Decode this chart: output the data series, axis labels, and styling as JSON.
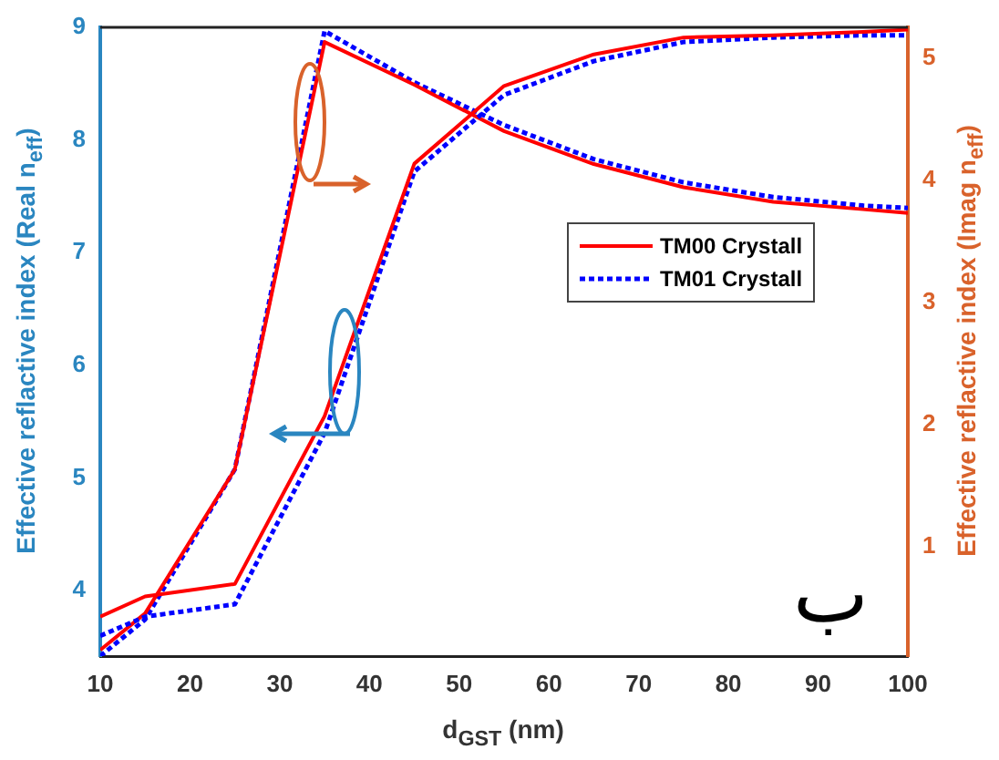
{
  "chart_data": {
    "type": "line",
    "xlabel": "d$_{GST}$ (nm)",
    "ylabel": "Effective reflactive index (Real n$_{eff}$)",
    "y2label": "Effective reflactive index (Imag n$_{eff}$)",
    "x": [
      10,
      15,
      25,
      35,
      45,
      55,
      65,
      75,
      85,
      95,
      100
    ],
    "series": [
      {
        "name": "TM00 Crystall",
        "color": "#ff0000",
        "line_style": "solid",
        "values": [
          3.77,
          3.95,
          4.06,
          5.55,
          7.79,
          8.48,
          8.76,
          8.91,
          8.93,
          8.96,
          8.98
        ]
      },
      {
        "name": "TM01 Crystall",
        "color": "#0000ff",
        "line_style": "dotted",
        "values": [
          3.6,
          3.77,
          3.88,
          5.4,
          7.72,
          8.4,
          8.7,
          8.87,
          8.91,
          8.93,
          8.93
        ]
      },
      {
        "color": "#ff0000",
        "line_style": "solid",
        "axis": "y2",
        "values": [
          0.15,
          0.45,
          1.63,
          5.13,
          4.78,
          4.4,
          4.13,
          3.94,
          3.82,
          3.76,
          3.73
        ]
      },
      {
        "color": "#0000ff",
        "line_style": "dotted",
        "axis": "y2",
        "values": [
          0.1,
          0.4,
          1.63,
          5.22,
          4.8,
          4.45,
          4.17,
          3.98,
          3.86,
          3.79,
          3.77
        ]
      }
    ],
    "xlim": [
      10,
      100
    ],
    "xticks": [
      10,
      20,
      30,
      40,
      50,
      60,
      70,
      80,
      90,
      100
    ],
    "ylim": [
      3.42,
      9
    ],
    "yticks": [
      4,
      5,
      6,
      7,
      8,
      9
    ],
    "y2lim": [
      0.1,
      5.25
    ],
    "y2ticks": [
      1,
      2,
      3,
      4,
      5
    ],
    "legend": "right",
    "grid": false,
    "marker": "none",
    "annotations": [
      "ب"
    ]
  }
}
